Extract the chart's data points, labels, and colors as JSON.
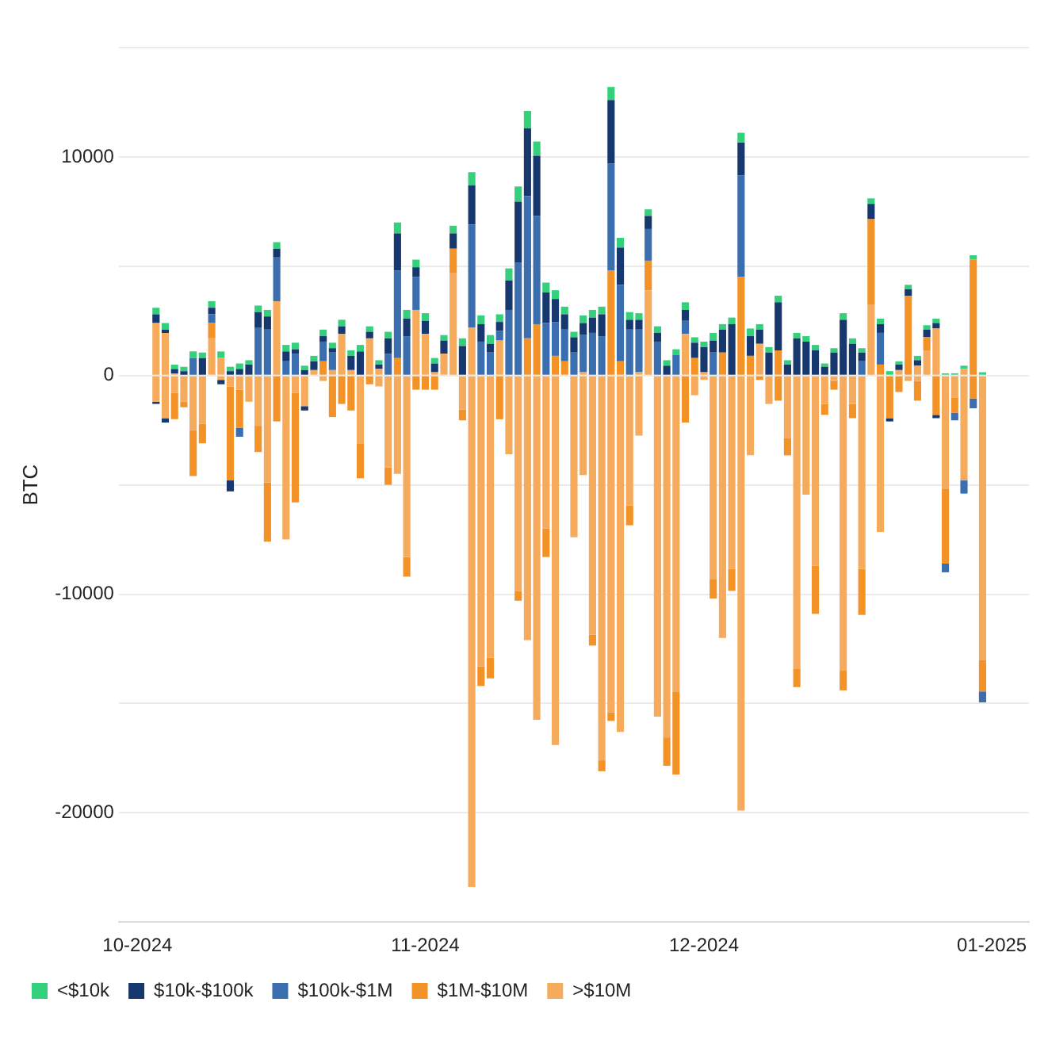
{
  "chart_data": {
    "type": "bar",
    "stacked": true,
    "ylabel": "BTC",
    "grid": "y",
    "legend": "bottom left",
    "x": [
      "2024-10-03",
      "2024-10-04",
      "2024-10-05",
      "2024-10-06",
      "2024-10-07",
      "2024-10-08",
      "2024-10-09",
      "2024-10-10",
      "2024-10-11",
      "2024-10-12",
      "2024-10-13",
      "2024-10-14",
      "2024-10-15",
      "2024-10-16",
      "2024-10-17",
      "2024-10-18",
      "2024-10-19",
      "2024-10-20",
      "2024-10-21",
      "2024-10-22",
      "2024-10-23",
      "2024-10-24",
      "2024-10-25",
      "2024-10-26",
      "2024-10-27",
      "2024-10-28",
      "2024-10-29",
      "2024-10-30",
      "2024-10-31",
      "2024-11-01",
      "2024-11-02",
      "2024-11-03",
      "2024-11-04",
      "2024-11-05",
      "2024-11-06",
      "2024-11-07",
      "2024-11-08",
      "2024-11-09",
      "2024-11-10",
      "2024-11-11",
      "2024-11-12",
      "2024-11-13",
      "2024-11-14",
      "2024-11-15",
      "2024-11-16",
      "2024-11-17",
      "2024-11-18",
      "2024-11-19",
      "2024-11-20",
      "2024-11-21",
      "2024-11-22",
      "2024-11-23",
      "2024-11-24",
      "2024-11-25",
      "2024-11-26",
      "2024-11-27",
      "2024-11-28",
      "2024-11-29",
      "2024-11-30",
      "2024-12-01",
      "2024-12-02",
      "2024-12-03",
      "2024-12-04",
      "2024-12-05",
      "2024-12-06",
      "2024-12-07",
      "2024-12-08",
      "2024-12-09",
      "2024-12-10",
      "2024-12-11",
      "2024-12-12",
      "2024-12-13",
      "2024-12-14",
      "2024-12-15",
      "2024-12-16",
      "2024-12-17",
      "2024-12-18",
      "2024-12-19",
      "2024-12-20",
      "2024-12-21",
      "2024-12-22",
      "2024-12-23",
      "2024-12-24",
      "2024-12-25",
      "2024-12-26",
      "2024-12-27",
      "2024-12-28",
      "2024-12-29",
      "2024-12-30",
      "2024-12-31"
    ],
    "xlim": [
      "2024-09-29",
      "2025-01-05"
    ],
    "xticks": [
      {
        "value": "2024-10-01",
        "label": "10-2024"
      },
      {
        "value": "2024-11-01",
        "label": "11-2024"
      },
      {
        "value": "2024-12-01",
        "label": "12-2024"
      },
      {
        "value": "2025-01-01",
        "label": "01-2025"
      }
    ],
    "ylim": [
      -25000,
      15000
    ],
    "yticks": [
      {
        "value": -25000,
        "label": null
      },
      -20000,
      {
        "value": -15000,
        "label": null
      },
      -10000,
      {
        "value": -5000,
        "label": null
      },
      0,
      {
        "value": 5000,
        "label": null
      },
      10000,
      {
        "value": 15000,
        "label": null
      }
    ],
    "series": [
      {
        "name": ">$10M",
        "color": "#f5aa5c",
        "values": [
          2400,
          1950,
          100,
          0,
          0,
          0,
          1700,
          800,
          0,
          0,
          0,
          0,
          0,
          3400,
          0,
          0,
          0,
          250,
          0,
          250,
          1900,
          250,
          0,
          1700,
          300,
          0,
          0,
          0,
          3000,
          1900,
          150,
          1000,
          4700,
          0,
          2200,
          0,
          0,
          1600,
          0,
          0,
          0,
          0,
          0,
          0,
          0,
          0,
          150,
          0,
          0,
          0,
          0,
          0,
          150,
          3900,
          0,
          0,
          0,
          1900,
          0,
          150,
          0,
          0,
          0,
          0,
          0,
          1450,
          0,
          0,
          0,
          0,
          0,
          0,
          0,
          0,
          0,
          0,
          0,
          3250,
          0,
          0,
          250,
          0,
          450,
          1150,
          2150,
          0,
          0,
          300,
          0,
          0
        ]
      },
      {
        "name": "$1M-$10M",
        "color": "#f39226",
        "values": [
          0,
          0,
          0,
          0,
          0,
          0,
          700,
          0,
          0,
          0,
          0,
          0,
          0,
          0,
          0,
          0,
          0,
          0,
          650,
          0,
          0,
          0,
          0,
          0,
          0,
          0,
          800,
          0,
          0,
          0,
          0,
          0,
          1100,
          0,
          0,
          0,
          0,
          0,
          0,
          0,
          1700,
          2350,
          0,
          900,
          650,
          0,
          0,
          0,
          0,
          4800,
          650,
          0,
          0,
          1350,
          0,
          0,
          0,
          0,
          800,
          0,
          0,
          1050,
          0,
          4500,
          900,
          0,
          0,
          1150,
          0,
          0,
          0,
          0,
          0,
          0,
          0,
          0,
          0,
          3900,
          500,
          0,
          0,
          3650,
          0,
          600,
          0,
          0,
          0,
          0,
          5300,
          0
        ]
      },
      {
        "name": "$100k-$1M",
        "color": "#3b6eae",
        "values": [
          0,
          0,
          0,
          0,
          800,
          0,
          400,
          0,
          0,
          0,
          0,
          2200,
          2100,
          2000,
          650,
          1000,
          0,
          0,
          900,
          800,
          0,
          0,
          0,
          0,
          0,
          1000,
          4000,
          1800,
          1500,
          0,
          0,
          0,
          0,
          0,
          4700,
          1550,
          1050,
          450,
          3000,
          5150,
          6500,
          4950,
          2400,
          1550,
          1450,
          1050,
          1700,
          1950,
          1800,
          4900,
          3500,
          2100,
          1950,
          1450,
          1550,
          0,
          950,
          600,
          0,
          0,
          1050,
          0,
          0,
          4650,
          0,
          0,
          0,
          0,
          0,
          0,
          0,
          0,
          0,
          0,
          0,
          0,
          650,
          0,
          1450,
          0,
          0,
          0,
          0,
          0,
          0,
          0,
          0,
          0,
          0,
          0
        ]
      },
      {
        "name": "$10k-$100k",
        "color": "#17386e",
        "values": [
          400,
          150,
          200,
          200,
          0,
          800,
          300,
          0,
          200,
          300,
          500,
          700,
          600,
          400,
          450,
          200,
          250,
          400,
          250,
          200,
          350,
          650,
          1100,
          300,
          200,
          700,
          1700,
          800,
          450,
          600,
          400,
          600,
          700,
          1350,
          1800,
          800,
          400,
          400,
          1350,
          2800,
          3100,
          2750,
          1400,
          1050,
          700,
          700,
          550,
          700,
          1000,
          2900,
          1700,
          450,
          450,
          600,
          400,
          450,
          0,
          500,
          700,
          1150,
          550,
          1050,
          2350,
          1500,
          900,
          650,
          1050,
          2200,
          500,
          1700,
          1550,
          1150,
          400,
          1050,
          2550,
          1450,
          400,
          700,
          400,
          0,
          250,
          300,
          250,
          350,
          250,
          0,
          0,
          0,
          0,
          0
        ]
      },
      {
        "name": "<$10k",
        "color": "#35d07c",
        "values": [
          300,
          300,
          200,
          200,
          300,
          250,
          300,
          300,
          200,
          250,
          200,
          300,
          300,
          300,
          300,
          300,
          200,
          250,
          300,
          250,
          300,
          250,
          300,
          250,
          200,
          300,
          500,
          400,
          350,
          350,
          250,
          250,
          350,
          350,
          600,
          400,
          400,
          350,
          550,
          700,
          800,
          650,
          450,
          400,
          350,
          250,
          350,
          350,
          350,
          600,
          450,
          350,
          300,
          300,
          300,
          250,
          250,
          350,
          250,
          250,
          350,
          250,
          300,
          450,
          350,
          250,
          250,
          300,
          200,
          250,
          250,
          250,
          150,
          200,
          300,
          250,
          200,
          250,
          250,
          200,
          150,
          200,
          200,
          200,
          200,
          100,
          100,
          150,
          200,
          150
        ]
      },
      {
        "color": "#f5aa5c",
        "values": [
          -1200,
          -1950,
          -800,
          -1200,
          -2500,
          -2200,
          0,
          -200,
          -500,
          -650,
          -1200,
          -2300,
          -4900,
          0,
          -7500,
          -800,
          -1400,
          0,
          -250,
          0,
          0,
          0,
          -3100,
          0,
          -500,
          -4200,
          -4500,
          -8300,
          0,
          0,
          0,
          0,
          0,
          -1550,
          -23400,
          -13300,
          -12900,
          0,
          -3600,
          -9850,
          -12100,
          -15750,
          -7000,
          -16900,
          0,
          -7400,
          -4550,
          -11850,
          -17600,
          -15400,
          -16300,
          -5950,
          -2750,
          0,
          -15600,
          -16550,
          -14450,
          0,
          -900,
          -200,
          -9300,
          -12000,
          -8850,
          -19900,
          -3650,
          0,
          -1300,
          0,
          -2850,
          -13400,
          -5450,
          -8700,
          -1300,
          -250,
          -13500,
          -1300,
          -8850,
          0,
          -7150,
          0,
          0,
          -250,
          -250,
          0,
          0,
          -5200,
          -1000,
          -4800,
          0,
          -13000
        ]
      },
      {
        "color": "#f39226",
        "values": [
          0,
          0,
          -1200,
          -250,
          -2100,
          -900,
          0,
          0,
          -4300,
          -1750,
          0,
          -1200,
          -2700,
          -2100,
          0,
          -5000,
          0,
          0,
          0,
          -1900,
          -1300,
          -1600,
          -1600,
          -400,
          0,
          -800,
          0,
          -900,
          -650,
          -650,
          -650,
          0,
          0,
          -500,
          0,
          -900,
          -950,
          -2000,
          0,
          -450,
          0,
          0,
          -1300,
          0,
          0,
          0,
          0,
          -500,
          -500,
          -400,
          0,
          -900,
          0,
          0,
          0,
          -1300,
          -3800,
          -2150,
          0,
          0,
          -900,
          0,
          -1000,
          0,
          0,
          -200,
          0,
          -1150,
          -800,
          -850,
          0,
          -2200,
          -500,
          -400,
          -900,
          -650,
          -2100,
          0,
          0,
          -1950,
          -750,
          0,
          -900,
          0,
          -1800,
          -3400,
          -700,
          0,
          -1050,
          -1450
        ]
      },
      {
        "color": "#3b6eae",
        "values": [
          0,
          0,
          0,
          0,
          0,
          0,
          0,
          0,
          0,
          -400,
          0,
          0,
          0,
          0,
          0,
          0,
          0,
          0,
          0,
          0,
          0,
          0,
          0,
          0,
          0,
          0,
          0,
          0,
          0,
          0,
          0,
          0,
          0,
          0,
          0,
          0,
          0,
          0,
          0,
          0,
          0,
          0,
          0,
          0,
          0,
          0,
          0,
          0,
          0,
          0,
          0,
          0,
          0,
          0,
          0,
          0,
          0,
          0,
          0,
          0,
          0,
          0,
          0,
          0,
          0,
          0,
          0,
          0,
          0,
          0,
          0,
          0,
          0,
          0,
          0,
          0,
          0,
          0,
          0,
          0,
          0,
          0,
          0,
          0,
          0,
          -400,
          -350,
          -600,
          -450,
          -500
        ]
      },
      {
        "color": "#17386e",
        "values": [
          -100,
          -200,
          0,
          0,
          0,
          0,
          0,
          -200,
          -500,
          0,
          0,
          0,
          0,
          0,
          0,
          0,
          -200,
          0,
          0,
          0,
          0,
          0,
          0,
          0,
          0,
          0,
          0,
          0,
          0,
          0,
          0,
          0,
          0,
          0,
          0,
          0,
          0,
          0,
          0,
          0,
          0,
          0,
          0,
          0,
          0,
          0,
          0,
          0,
          0,
          0,
          0,
          0,
          0,
          0,
          0,
          0,
          0,
          0,
          0,
          0,
          0,
          0,
          0,
          0,
          0,
          0,
          0,
          0,
          0,
          0,
          0,
          0,
          0,
          0,
          0,
          0,
          0,
          0,
          0,
          -150,
          0,
          0,
          0,
          0,
          -150,
          0,
          0,
          0,
          0,
          0
        ]
      }
    ]
  }
}
